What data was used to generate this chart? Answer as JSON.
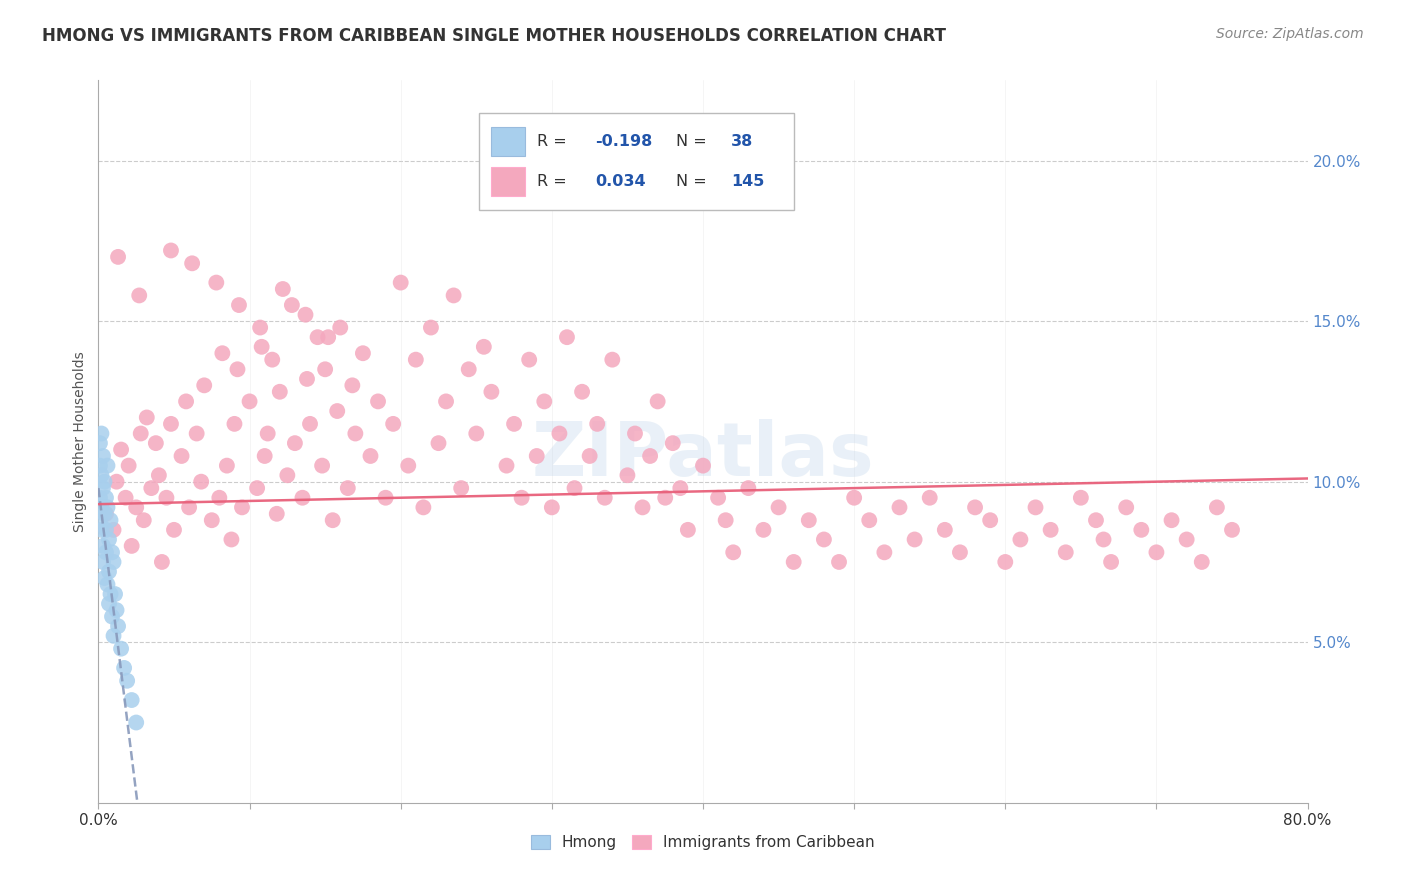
{
  "title": "HMONG VS IMMIGRANTS FROM CARIBBEAN SINGLE MOTHER HOUSEHOLDS CORRELATION CHART",
  "source": "Source: ZipAtlas.com",
  "ylabel": "Single Mother Households",
  "xmin": 0.0,
  "xmax": 0.8,
  "ymin": 0.0,
  "ymax": 0.225,
  "yticks": [
    0.05,
    0.1,
    0.15,
    0.2
  ],
  "ytick_labels": [
    "5.0%",
    "10.0%",
    "15.0%",
    "20.0%"
  ],
  "hmong_color": "#A8CFED",
  "caribbean_color": "#F4A8BE",
  "hmong_R": -0.198,
  "hmong_N": 38,
  "caribbean_R": 0.034,
  "caribbean_N": 145,
  "hmong_line_color": "#8899BB",
  "caribbean_line_color": "#E8607A",
  "title_fontsize": 12,
  "source_fontsize": 10,
  "carib_x": [
    0.005,
    0.01,
    0.012,
    0.015,
    0.018,
    0.02,
    0.022,
    0.025,
    0.028,
    0.03,
    0.032,
    0.035,
    0.038,
    0.04,
    0.042,
    0.045,
    0.048,
    0.05,
    0.055,
    0.058,
    0.06,
    0.065,
    0.068,
    0.07,
    0.075,
    0.08,
    0.082,
    0.085,
    0.088,
    0.09,
    0.092,
    0.095,
    0.1,
    0.105,
    0.108,
    0.11,
    0.112,
    0.115,
    0.118,
    0.12,
    0.125,
    0.128,
    0.13,
    0.135,
    0.138,
    0.14,
    0.145,
    0.148,
    0.15,
    0.155,
    0.158,
    0.16,
    0.165,
    0.168,
    0.17,
    0.175,
    0.18,
    0.185,
    0.19,
    0.195,
    0.2,
    0.205,
    0.21,
    0.215,
    0.22,
    0.225,
    0.23,
    0.235,
    0.24,
    0.245,
    0.25,
    0.255,
    0.26,
    0.27,
    0.275,
    0.28,
    0.285,
    0.29,
    0.295,
    0.3,
    0.305,
    0.31,
    0.315,
    0.32,
    0.325,
    0.33,
    0.335,
    0.34,
    0.35,
    0.355,
    0.36,
    0.365,
    0.37,
    0.375,
    0.38,
    0.385,
    0.39,
    0.4,
    0.41,
    0.415,
    0.42,
    0.43,
    0.44,
    0.45,
    0.46,
    0.47,
    0.48,
    0.49,
    0.5,
    0.51,
    0.52,
    0.53,
    0.54,
    0.55,
    0.56,
    0.57,
    0.58,
    0.59,
    0.6,
    0.61,
    0.62,
    0.63,
    0.64,
    0.65,
    0.66,
    0.665,
    0.67,
    0.68,
    0.69,
    0.7,
    0.71,
    0.72,
    0.73,
    0.74,
    0.75,
    0.013,
    0.027,
    0.048,
    0.062,
    0.078,
    0.093,
    0.107,
    0.122,
    0.137,
    0.152
  ],
  "carib_y": [
    0.09,
    0.085,
    0.1,
    0.11,
    0.095,
    0.105,
    0.08,
    0.092,
    0.115,
    0.088,
    0.12,
    0.098,
    0.112,
    0.102,
    0.075,
    0.095,
    0.118,
    0.085,
    0.108,
    0.125,
    0.092,
    0.115,
    0.1,
    0.13,
    0.088,
    0.095,
    0.14,
    0.105,
    0.082,
    0.118,
    0.135,
    0.092,
    0.125,
    0.098,
    0.142,
    0.108,
    0.115,
    0.138,
    0.09,
    0.128,
    0.102,
    0.155,
    0.112,
    0.095,
    0.132,
    0.118,
    0.145,
    0.105,
    0.135,
    0.088,
    0.122,
    0.148,
    0.098,
    0.13,
    0.115,
    0.14,
    0.108,
    0.125,
    0.095,
    0.118,
    0.162,
    0.105,
    0.138,
    0.092,
    0.148,
    0.112,
    0.125,
    0.158,
    0.098,
    0.135,
    0.115,
    0.142,
    0.128,
    0.105,
    0.118,
    0.095,
    0.138,
    0.108,
    0.125,
    0.092,
    0.115,
    0.145,
    0.098,
    0.128,
    0.108,
    0.118,
    0.095,
    0.138,
    0.102,
    0.115,
    0.092,
    0.108,
    0.125,
    0.095,
    0.112,
    0.098,
    0.085,
    0.105,
    0.095,
    0.088,
    0.078,
    0.098,
    0.085,
    0.092,
    0.075,
    0.088,
    0.082,
    0.075,
    0.095,
    0.088,
    0.078,
    0.092,
    0.082,
    0.095,
    0.085,
    0.078,
    0.092,
    0.088,
    0.075,
    0.082,
    0.092,
    0.085,
    0.078,
    0.095,
    0.088,
    0.082,
    0.075,
    0.092,
    0.085,
    0.078,
    0.088,
    0.082,
    0.075,
    0.092,
    0.085,
    0.17,
    0.158,
    0.172,
    0.168,
    0.162,
    0.155,
    0.148,
    0.16,
    0.152,
    0.145
  ],
  "hmong_x": [
    0.001,
    0.001,
    0.001,
    0.001,
    0.002,
    0.002,
    0.002,
    0.002,
    0.003,
    0.003,
    0.003,
    0.003,
    0.004,
    0.004,
    0.004,
    0.005,
    0.005,
    0.005,
    0.006,
    0.006,
    0.006,
    0.007,
    0.007,
    0.007,
    0.008,
    0.008,
    0.009,
    0.009,
    0.01,
    0.01,
    0.011,
    0.012,
    0.013,
    0.015,
    0.017,
    0.019,
    0.022,
    0.025
  ],
  "hmong_y": [
    0.095,
    0.105,
    0.088,
    0.112,
    0.092,
    0.102,
    0.085,
    0.115,
    0.08,
    0.098,
    0.108,
    0.075,
    0.09,
    0.1,
    0.07,
    0.085,
    0.095,
    0.078,
    0.092,
    0.068,
    0.105,
    0.082,
    0.072,
    0.062,
    0.088,
    0.065,
    0.078,
    0.058,
    0.075,
    0.052,
    0.065,
    0.06,
    0.055,
    0.048,
    0.042,
    0.038,
    0.032,
    0.025
  ]
}
